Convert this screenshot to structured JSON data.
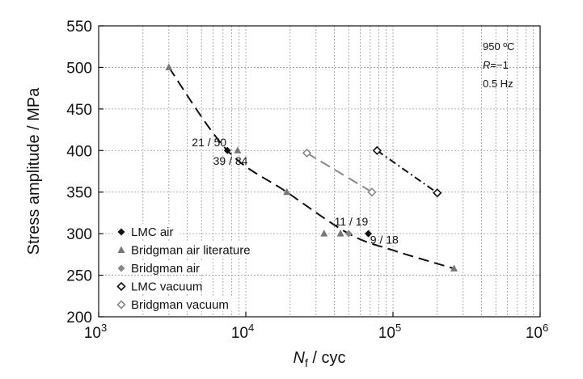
{
  "chart_data": {
    "type": "scatter",
    "xscale": "log",
    "xlim": [
      1000,
      1000000
    ],
    "ylim": [
      200,
      550
    ],
    "xticks": [
      {
        "value": 1000,
        "base": "10",
        "exp": "3"
      },
      {
        "value": 10000,
        "base": "10",
        "exp": "4"
      },
      {
        "value": 100000,
        "base": "10",
        "exp": "5"
      },
      {
        "value": 1000000,
        "base": "10",
        "exp": "6"
      }
    ],
    "yticks": [
      200,
      250,
      300,
      350,
      400,
      450,
      500,
      550
    ],
    "ylabel": "Stress amplitude / MPa",
    "xlabel": {
      "main": "N",
      "sub": "f",
      "rest": " / cyc"
    },
    "grid": true,
    "legend_position": "bottom-left",
    "series": [
      {
        "name": "LMC air",
        "marker": "diamond-filled",
        "color": "#111111",
        "points": [
          [
            7500,
            400
          ],
          [
            68000,
            300
          ]
        ]
      },
      {
        "name": "Bridgman air literature",
        "marker": "triangle",
        "color": "#777777",
        "points": [
          [
            3000,
            500
          ],
          [
            8800,
            400
          ],
          [
            19000,
            350
          ],
          [
            34000,
            300
          ],
          [
            44000,
            300
          ],
          [
            260000,
            258
          ]
        ]
      },
      {
        "name": "Bridgman air",
        "marker": "diamond-filled",
        "color": "#888888",
        "points": [
          [
            50000,
            300
          ]
        ]
      },
      {
        "name": "LMC vacuum",
        "marker": "diamond-open",
        "color": "#111111",
        "points": [
          [
            78000,
            400
          ],
          [
            200000,
            349
          ]
        ]
      },
      {
        "name": "Bridgman vacuum",
        "marker": "diamond-open",
        "color": "#888888",
        "points": [
          [
            26000,
            397
          ],
          [
            72000,
            350
          ]
        ]
      }
    ],
    "fit_curves": [
      {
        "style": "dash",
        "color": "#111111",
        "points": [
          [
            3000,
            500
          ],
          [
            7500,
            400
          ],
          [
            19000,
            350
          ],
          [
            50000,
            300
          ],
          [
            100000,
            280
          ],
          [
            260000,
            258
          ]
        ]
      },
      {
        "style": "dash",
        "color": "#888888",
        "points": [
          [
            26000,
            397
          ],
          [
            72000,
            350
          ]
        ]
      },
      {
        "style": "dashdot",
        "color": "#111111",
        "points": [
          [
            78000,
            400
          ],
          [
            200000,
            349
          ]
        ]
      }
    ],
    "annotations": [
      {
        "text": "21 / 50",
        "x": 4300,
        "y": 405
      },
      {
        "text": "39 / 84",
        "x": 6000,
        "y": 383
      },
      {
        "text": "11 / 19",
        "x": 40000,
        "y": 310
      },
      {
        "text": "9 / 18",
        "x": 70000,
        "y": 288
      }
    ],
    "conditions": {
      "temp": "950 ºC",
      "r_label": "R",
      "r_value": "=−1",
      "freq": "0.5 Hz"
    }
  }
}
